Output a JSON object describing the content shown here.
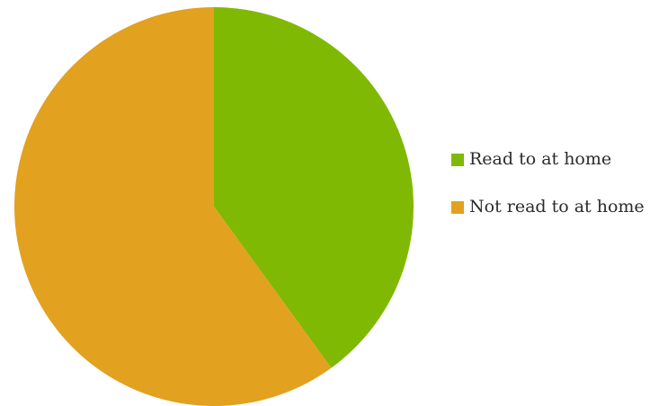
{
  "chart_data": {
    "type": "pie",
    "title": "",
    "start_angle_deg": 0,
    "direction": "clockwise",
    "legend_position": "right",
    "slices": [
      {
        "label": "Read to at home",
        "value": 40,
        "color": "#80b904"
      },
      {
        "label": "Not read to at home",
        "value": 60,
        "color": "#e2a11f"
      }
    ]
  }
}
